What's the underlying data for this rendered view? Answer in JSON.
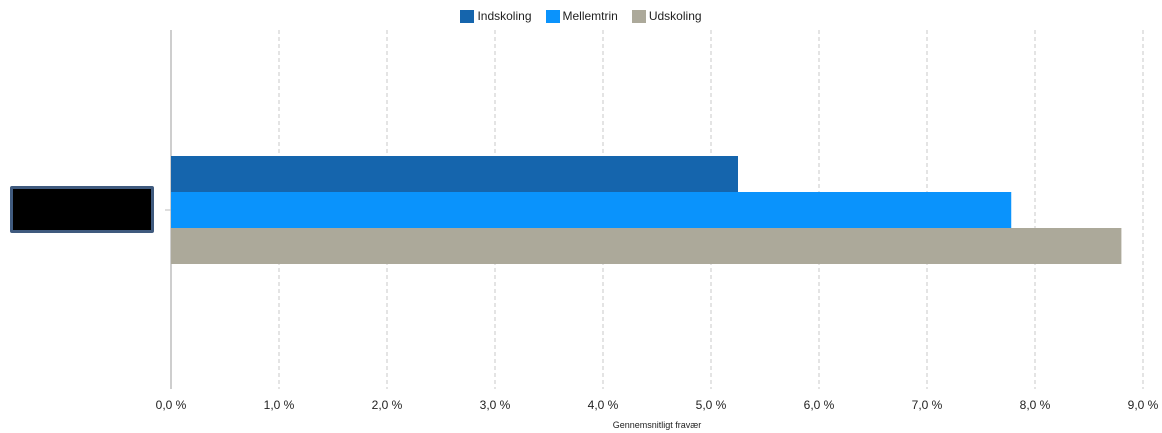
{
  "chart_data": {
    "type": "bar",
    "orientation": "horizontal",
    "categories": [
      ""
    ],
    "series": [
      {
        "name": "Indskoling",
        "values": [
          5.25
        ],
        "color": "#1565ad"
      },
      {
        "name": "Mellemtrin",
        "values": [
          7.78
        ],
        "color": "#0a93fc"
      },
      {
        "name": "Udskoling",
        "values": [
          8.8
        ],
        "color": "#aca99a"
      }
    ],
    "xlabel": "Gennemsnitligt fravær",
    "ylabel": "",
    "xlim": [
      0,
      9
    ],
    "xticks": [
      {
        "value": 0,
        "label": "0,0 %"
      },
      {
        "value": 1,
        "label": "1,0 %"
      },
      {
        "value": 2,
        "label": "2,0 %"
      },
      {
        "value": 3,
        "label": "3,0 %"
      },
      {
        "value": 4,
        "label": "4,0 %"
      },
      {
        "value": 5,
        "label": "5,0 %"
      },
      {
        "value": 6,
        "label": "6,0 %"
      },
      {
        "value": 7,
        "label": "7,0 %"
      },
      {
        "value": 8,
        "label": "8,0 %"
      },
      {
        "value": 9,
        "label": "9,0 %"
      }
    ],
    "grid": "vertical dashed",
    "legend_position": "top-center",
    "category_label_redacted": true
  }
}
